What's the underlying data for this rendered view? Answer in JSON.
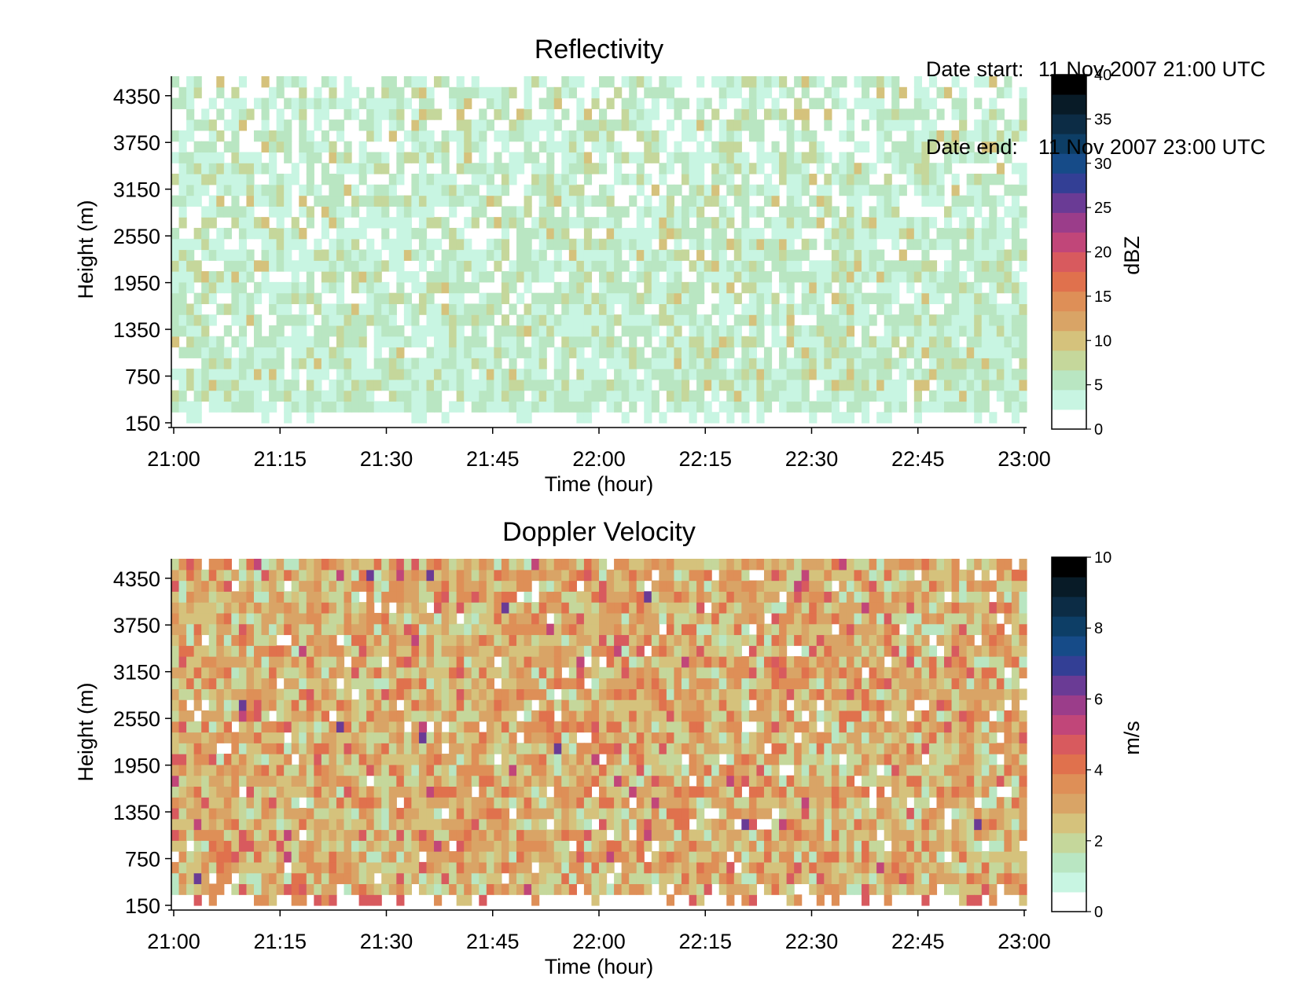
{
  "header": {
    "date_start_label": "Date start:",
    "date_start_value": "11 Nov 2007 21:00 UTC",
    "date_end_label": "Date end:",
    "date_end_value": "11 Nov 2007 23:00 UTC"
  },
  "chart_data": [
    {
      "type": "heatmap",
      "title": "Reflectivity",
      "xlabel": "Time (hour)",
      "ylabel": "Height (m)",
      "x_ticks": [
        "21:00",
        "21:15",
        "21:30",
        "21:45",
        "22:00",
        "22:15",
        "22:30",
        "22:45",
        "23:00"
      ],
      "y_ticks": [
        "150",
        "750",
        "1350",
        "1950",
        "2550",
        "3150",
        "3750",
        "4350"
      ],
      "xlim": [
        "21:00",
        "23:00"
      ],
      "ylim": [
        150,
        4600
      ],
      "colorbar": {
        "label": "dBZ",
        "min": 0,
        "max": 40,
        "ticks": [
          "0",
          "5",
          "10",
          "15",
          "20",
          "25",
          "30",
          "35",
          "40"
        ],
        "colors": [
          "#ffffff",
          "#c8f5e2",
          "#b9e6c2",
          "#c5d79b",
          "#d5c27c",
          "#d9a466",
          "#de8f57",
          "#e0714d",
          "#d85a5e",
          "#c14679",
          "#9b3d8a",
          "#6a3b95",
          "#333f95",
          "#164b88",
          "#0d3e66",
          "#0c2c45",
          "#081b27",
          "#000000"
        ]
      },
      "values_observed": "Sparse field mostly 1-10 dBZ (light green to olive), with gaps (white) throughout and a clear boundary near 150-450 m",
      "dominant_range_dbz": [
        1,
        10
      ]
    },
    {
      "type": "heatmap",
      "title": "Doppler Velocity",
      "xlabel": "Time (hour)",
      "ylabel": "Height (m)",
      "x_ticks": [
        "21:00",
        "21:15",
        "21:30",
        "21:45",
        "22:00",
        "22:15",
        "22:30",
        "22:45",
        "23:00"
      ],
      "y_ticks": [
        "150",
        "750",
        "1350",
        "1950",
        "2550",
        "3150",
        "3750",
        "4350"
      ],
      "xlim": [
        "21:00",
        "23:00"
      ],
      "ylim": [
        150,
        4600
      ],
      "colorbar": {
        "label": "m/s",
        "min": 0,
        "max": 10,
        "ticks": [
          "0",
          "2",
          "4",
          "6",
          "8",
          "10"
        ],
        "colors": [
          "#ffffff",
          "#c8f5e2",
          "#b9e6c2",
          "#c5d79b",
          "#d5c27c",
          "#d9a466",
          "#de8f57",
          "#e0714d",
          "#d85a5e",
          "#c14679",
          "#9b3d8a",
          "#6a3b95",
          "#333f95",
          "#164b88",
          "#0d3e66",
          "#0c2c45",
          "#081b27",
          "#000000"
        ]
      },
      "values_observed": "Dense field mostly 1.5-4 m/s (olive to orange), occasional 4.5-6 m/s (red/magenta/purple) and sporadic gaps",
      "dominant_range_ms": [
        1.5,
        4
      ]
    }
  ]
}
